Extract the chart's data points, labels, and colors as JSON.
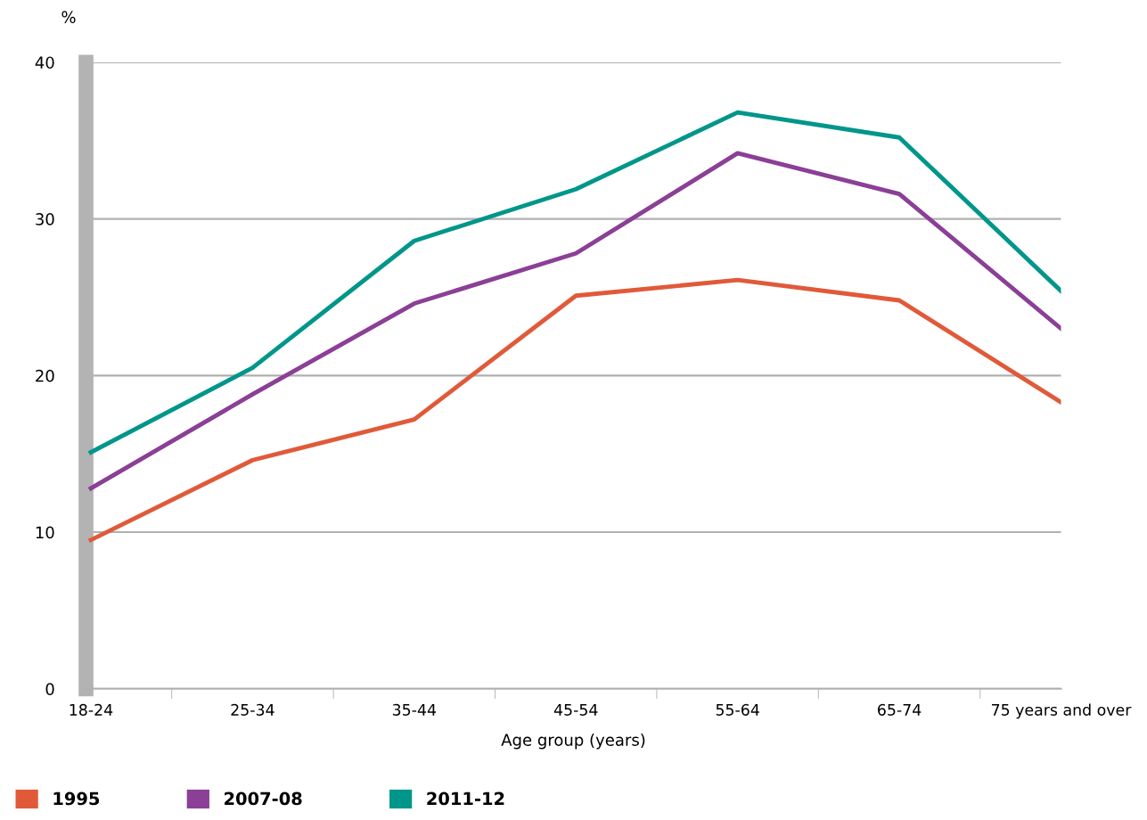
{
  "chart_data": {
    "type": "line",
    "ylabel": "%",
    "xlabel": "Age group (years)",
    "categories": [
      "18-24",
      "25-34",
      "35-44",
      "45-54",
      "55-64",
      "65-74",
      "75 years and over"
    ],
    "series": [
      {
        "name": "1995",
        "color": "#e05a3a",
        "values": [
          9.5,
          14.6,
          17.2,
          25.1,
          26.1,
          24.8,
          18.3
        ]
      },
      {
        "name": "2007-08",
        "color": "#8b3f96",
        "values": [
          12.8,
          18.8,
          24.6,
          27.8,
          34.2,
          31.6,
          23.0
        ]
      },
      {
        "name": "2011-12",
        "color": "#00968a",
        "values": [
          15.1,
          20.5,
          28.6,
          31.9,
          36.8,
          35.2,
          25.4
        ]
      }
    ],
    "ylim": [
      0,
      40
    ],
    "yticks": [
      0,
      10,
      20,
      30,
      40
    ],
    "grid": "y",
    "legend": "bottom left",
    "marker": "none",
    "line_style": "solid"
  }
}
